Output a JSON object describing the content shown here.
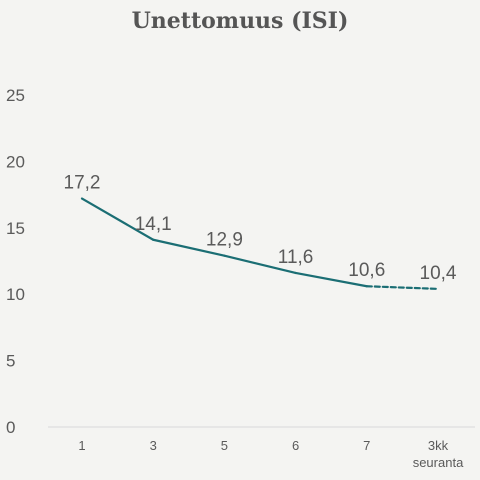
{
  "chart_data": {
    "type": "line",
    "title": "Unettomuus (ISI)",
    "xlabel": "",
    "ylabel": "",
    "categories": [
      "1",
      "3",
      "5",
      "6",
      "7",
      "3kk\nseuranta"
    ],
    "values": [
      17.2,
      14.1,
      12.9,
      11.6,
      10.6,
      10.4
    ],
    "data_labels": [
      "17,2",
      "14,1",
      "12,9",
      "11,6",
      "10,6",
      "10,4"
    ],
    "dashed_last_segment": true,
    "ylim": [
      0,
      25
    ],
    "yticks": [
      "0",
      "5",
      "10",
      "15",
      "20",
      "25"
    ],
    "grid": false,
    "line_color": "#1b6e74",
    "background": "#f4f4f2"
  }
}
